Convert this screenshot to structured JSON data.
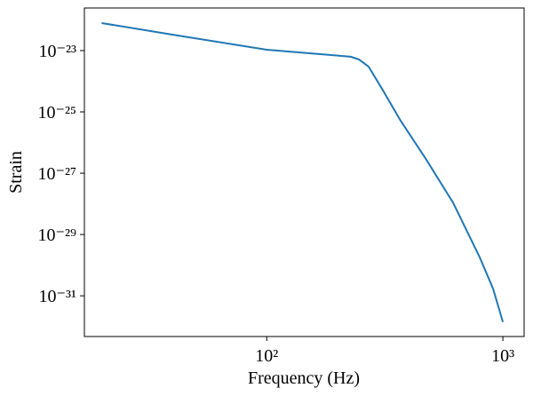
{
  "chart_data": {
    "type": "line",
    "x_label": "Frequency (Hz)",
    "y_label": "Strain",
    "log_x": true,
    "log_y": true,
    "grid": false,
    "xlim": [
      16.9,
      1230
    ],
    "ylim": [
      4.7e-33,
      2.45e-22
    ],
    "xticks": [
      {
        "value": 100,
        "label": "10²"
      },
      {
        "value": 1000,
        "label": "10³"
      }
    ],
    "yticks": [
      {
        "value": 1e-23,
        "label": "10⁻²³"
      },
      {
        "value": 1e-25,
        "label": "10⁻²⁵"
      },
      {
        "value": 1e-27,
        "label": "10⁻²⁷"
      },
      {
        "value": 1e-29,
        "label": "10⁻²⁹"
      },
      {
        "value": 1e-31,
        "label": "10⁻³¹"
      }
    ],
    "series": [
      {
        "color": "#1f77b4",
        "x": [
          20,
          42,
          100,
          154,
          227,
          246,
          270,
          308,
          367,
          475,
          615,
          798,
          909,
          1000
        ],
        "values": [
          7.9e-23,
          3.1e-23,
          1.07e-23,
          8.1e-24,
          6.3e-24,
          5.1e-24,
          3e-24,
          5.6e-25,
          5.5e-26,
          2.7e-27,
          1.1e-28,
          1.8e-30,
          1.7e-31,
          1.4e-32
        ]
      }
    ]
  }
}
